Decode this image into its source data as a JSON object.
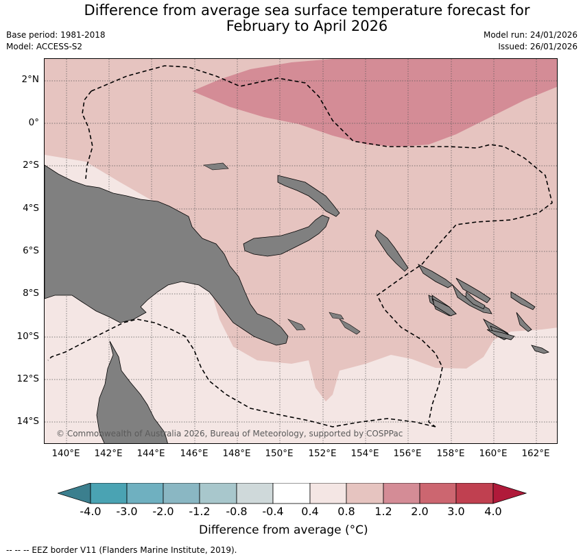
{
  "title": {
    "line1": "Difference from average sea surface temperature forecast for",
    "line2": "February to April 2026"
  },
  "meta": {
    "base_period": "Base period: 1981-2018",
    "model": "Model: ACCESS-S2",
    "model_run": "Model run: 24/01/2026",
    "issued": "Issued: 26/01/2026"
  },
  "map": {
    "lat_labels": [
      "2°N",
      "0°",
      "2°S",
      "4°S",
      "6°S",
      "8°S",
      "10°S",
      "12°S",
      "14°S"
    ],
    "lon_labels": [
      "140°E",
      "142°E",
      "144°E",
      "146°E",
      "148°E",
      "150°E",
      "152°E",
      "154°E",
      "156°E",
      "158°E",
      "160°E",
      "162°E"
    ],
    "copyright": "© Commonwealth of Australia 2026, Bureau of Meteorology, supported by COSPPac",
    "colors": {
      "land": "#808080",
      "anom_0_4_0_8": "#f4e6e4",
      "anom_0_8_1_2": "#e6c4c0",
      "anom_1_2_2_0": "#d48c96"
    }
  },
  "colorbar": {
    "ticks": [
      "-4.0",
      "-3.0",
      "-2.0",
      "-1.2",
      "-0.8",
      "-0.4",
      "0.4",
      "0.8",
      "1.2",
      "2.0",
      "3.0",
      "4.0"
    ],
    "colors": [
      "#3b7f8e",
      "#4aa3b3",
      "#6fb0c0",
      "#8ab7c3",
      "#a8c7cc",
      "#cfd9da",
      "#ffffff",
      "#f4e6e4",
      "#e6c4c0",
      "#d48c96",
      "#cc6670",
      "#c04050",
      "#b01a3a"
    ],
    "label": "Difference from average (°C)"
  },
  "footer": "--  --  -- EEZ border V11 (Flanders Marine Institute, 2019)."
}
